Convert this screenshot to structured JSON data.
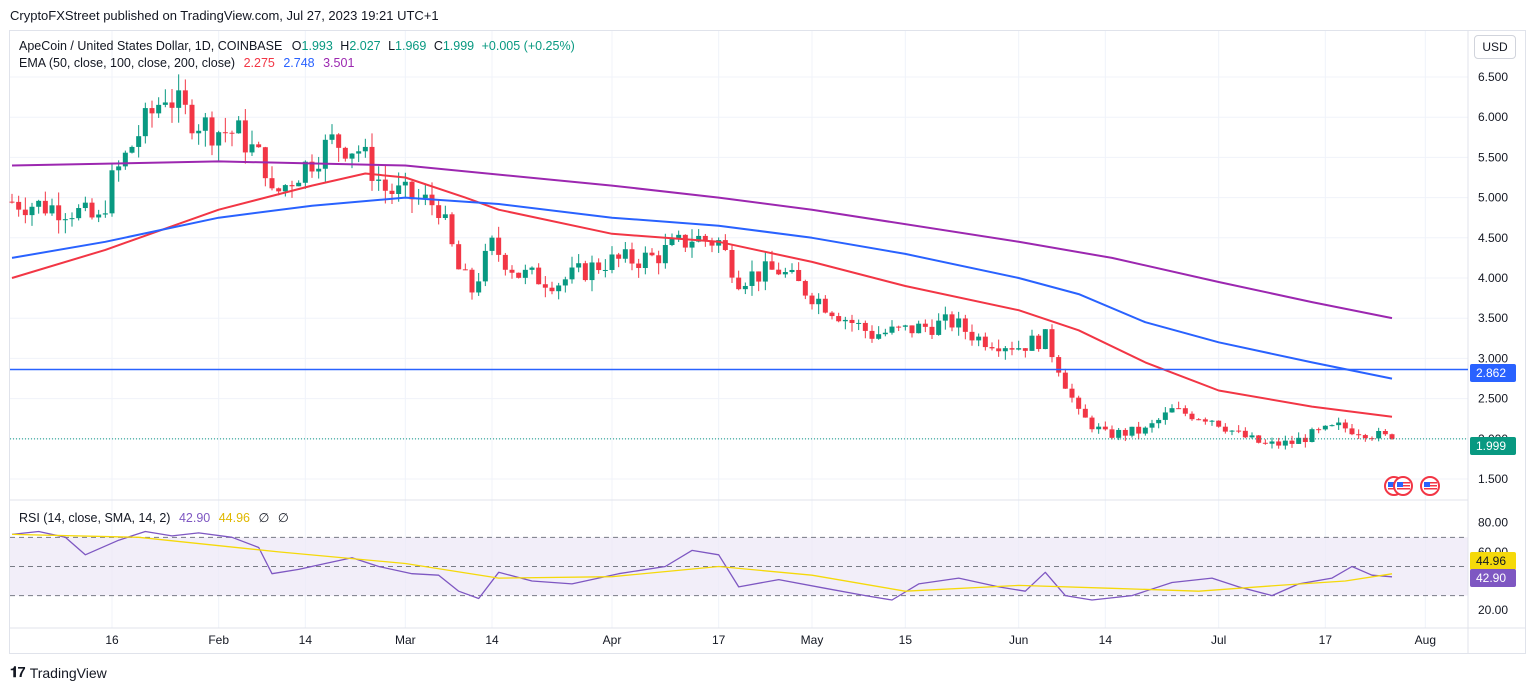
{
  "header": {
    "published": "CryptoFXStreet published on TradingView.com, Jul 27, 2023 19:21 UTC+1"
  },
  "legend": {
    "symbol": "ApeCoin / United States Dollar, 1D, COINBASE",
    "o_label": "O",
    "o_value": "1.993",
    "h_label": "H",
    "h_value": "2.027",
    "l_label": "L",
    "l_value": "1.969",
    "c_label": "C",
    "c_value": "1.999",
    "change": "+0.005 (+0.25%)",
    "ema_label": "EMA (50, close, 100, close, 200, close)",
    "ema50": "2.275",
    "ema100": "2.748",
    "ema200": "3.501",
    "rsi_label": "RSI (14, close, SMA, 14, 2)",
    "rsi_value": "42.90",
    "rsi_sma": "44.96",
    "rsi_extra1": "∅",
    "rsi_extra2": "∅"
  },
  "controls": {
    "currency_button": "USD"
  },
  "price_tags": {
    "hline": "2.862",
    "last": "1.999",
    "rsi_sma": "44.96",
    "rsi": "42.90"
  },
  "brand": {
    "name": "TradingView"
  },
  "colors": {
    "up": "#089981",
    "down": "#f23645",
    "ema50": "#f23645",
    "ema100": "#2962ff",
    "ema200": "#9c27b0",
    "hline": "#2962ff",
    "rsi": "#7e57c2",
    "rsi_sma": "#f5d90a",
    "rsi_band": "#ede7f6",
    "grid": "#f0f3fa"
  },
  "chart_data": [
    {
      "type": "candlestick",
      "title": "ApeCoin / United States Dollar, 1D, COINBASE",
      "ylim": [
        1.4,
        6.6
      ],
      "y_ticks": [
        "6.500",
        "6.000",
        "5.500",
        "5.000",
        "4.500",
        "4.000",
        "3.500",
        "3.000",
        "2.500",
        "2.000",
        "1.500"
      ],
      "x_ticks": [
        "16",
        "Feb",
        "14",
        "Mar",
        "14",
        "Apr",
        "17",
        "May",
        "15",
        "Jun",
        "14",
        "Jul",
        "17",
        "Aug"
      ],
      "horizontal_line": 2.862,
      "last_close": 1.999,
      "close_path": [
        [
          "2023-01-01",
          4.95
        ],
        [
          "2023-01-10",
          4.85
        ],
        [
          "2023-01-14",
          4.7
        ],
        [
          "2023-01-16",
          5.2
        ],
        [
          "2023-01-20",
          5.8
        ],
        [
          "2023-01-24",
          6.3
        ],
        [
          "2023-01-27",
          6.05
        ],
        [
          "2023-01-31",
          5.85
        ],
        [
          "2023-02-04",
          5.8
        ],
        [
          "2023-02-08",
          5.4
        ],
        [
          "2023-02-09",
          5.0
        ],
        [
          "2023-02-14",
          5.4
        ],
        [
          "2023-02-18",
          5.7
        ],
        [
          "2023-02-22",
          5.6
        ],
        [
          "2023-02-26",
          5.1
        ],
        [
          "2023-03-02",
          5.0
        ],
        [
          "2023-03-06",
          4.9
        ],
        [
          "2023-03-09",
          4.1
        ],
        [
          "2023-03-11",
          3.85
        ],
        [
          "2023-03-14",
          4.4
        ],
        [
          "2023-03-18",
          4.05
        ],
        [
          "2023-03-24",
          3.95
        ],
        [
          "2023-03-31",
          4.2
        ],
        [
          "2023-04-07",
          4.25
        ],
        [
          "2023-04-13",
          4.5
        ],
        [
          "2023-04-17",
          4.45
        ],
        [
          "2023-04-20",
          4.0
        ],
        [
          "2023-04-26",
          4.1
        ],
        [
          "2023-04-30",
          3.85
        ],
        [
          "2023-05-06",
          3.5
        ],
        [
          "2023-05-10",
          3.3
        ],
        [
          "2023-05-15",
          3.35
        ],
        [
          "2023-05-22",
          3.45
        ],
        [
          "2023-05-26",
          3.25
        ],
        [
          "2023-06-01",
          3.15
        ],
        [
          "2023-06-05",
          3.25
        ],
        [
          "2023-06-07",
          2.9
        ],
        [
          "2023-06-10",
          2.3
        ],
        [
          "2023-06-14",
          2.05
        ],
        [
          "2023-06-20",
          2.1
        ],
        [
          "2023-06-24",
          2.35
        ],
        [
          "2023-06-30",
          2.25
        ],
        [
          "2023-07-04",
          2.05
        ],
        [
          "2023-07-08",
          1.92
        ],
        [
          "2023-07-12",
          1.95
        ],
        [
          "2023-07-15",
          2.05
        ],
        [
          "2023-07-19",
          2.15
        ],
        [
          "2023-07-22",
          2.1
        ],
        [
          "2023-07-27",
          1.999
        ]
      ],
      "series": [
        {
          "name": "EMA 50",
          "points": [
            [
              "2023-01-01",
              4.0
            ],
            [
              "2023-01-15",
              4.35
            ],
            [
              "2023-02-01",
              4.85
            ],
            [
              "2023-02-15",
              5.15
            ],
            [
              "2023-02-23",
              5.3
            ],
            [
              "2023-03-01",
              5.25
            ],
            [
              "2023-03-10",
              5.0
            ],
            [
              "2023-03-15",
              4.85
            ],
            [
              "2023-04-01",
              4.55
            ],
            [
              "2023-04-17",
              4.45
            ],
            [
              "2023-05-01",
              4.2
            ],
            [
              "2023-05-15",
              3.9
            ],
            [
              "2023-06-01",
              3.6
            ],
            [
              "2023-06-10",
              3.35
            ],
            [
              "2023-06-20",
              2.95
            ],
            [
              "2023-07-01",
              2.6
            ],
            [
              "2023-07-15",
              2.4
            ],
            [
              "2023-07-27",
              2.275
            ]
          ]
        },
        {
          "name": "EMA 100",
          "points": [
            [
              "2023-01-01",
              4.25
            ],
            [
              "2023-01-15",
              4.45
            ],
            [
              "2023-02-01",
              4.75
            ],
            [
              "2023-02-15",
              4.9
            ],
            [
              "2023-03-01",
              5.0
            ],
            [
              "2023-03-15",
              4.92
            ],
            [
              "2023-04-01",
              4.75
            ],
            [
              "2023-04-17",
              4.65
            ],
            [
              "2023-05-01",
              4.5
            ],
            [
              "2023-05-15",
              4.3
            ],
            [
              "2023-06-01",
              4.0
            ],
            [
              "2023-06-10",
              3.8
            ],
            [
              "2023-06-20",
              3.45
            ],
            [
              "2023-07-01",
              3.2
            ],
            [
              "2023-07-15",
              2.95
            ],
            [
              "2023-07-27",
              2.748
            ]
          ]
        },
        {
          "name": "EMA 200",
          "points": [
            [
              "2023-01-01",
              5.4
            ],
            [
              "2023-02-01",
              5.45
            ],
            [
              "2023-03-01",
              5.4
            ],
            [
              "2023-04-01",
              5.15
            ],
            [
              "2023-04-17",
              5.0
            ],
            [
              "2023-05-01",
              4.85
            ],
            [
              "2023-06-01",
              4.45
            ],
            [
              "2023-06-15",
              4.25
            ],
            [
              "2023-07-01",
              3.95
            ],
            [
              "2023-07-15",
              3.7
            ],
            [
              "2023-07-27",
              3.501
            ]
          ]
        }
      ]
    },
    {
      "type": "line",
      "title": "RSI (14, close, SMA, 14, 2)",
      "ylim": [
        16,
        86
      ],
      "y_ticks": [
        "80.00",
        "60.00",
        "20.00"
      ],
      "bands": [
        70,
        50,
        30
      ],
      "series": [
        {
          "name": "RSI",
          "points": [
            [
              "2023-01-01",
              72
            ],
            [
              "2023-01-05",
              74
            ],
            [
              "2023-01-09",
              70
            ],
            [
              "2023-01-12",
              58
            ],
            [
              "2023-01-17",
              68
            ],
            [
              "2023-01-21",
              74
            ],
            [
              "2023-01-25",
              71
            ],
            [
              "2023-01-29",
              73
            ],
            [
              "2023-02-03",
              70
            ],
            [
              "2023-02-07",
              63
            ],
            [
              "2023-02-09",
              45
            ],
            [
              "2023-02-13",
              48
            ],
            [
              "2023-02-17",
              52
            ],
            [
              "2023-02-21",
              56
            ],
            [
              "2023-02-25",
              50
            ],
            [
              "2023-03-02",
              45
            ],
            [
              "2023-03-06",
              44
            ],
            [
              "2023-03-09",
              33
            ],
            [
              "2023-03-12",
              28
            ],
            [
              "2023-03-15",
              46
            ],
            [
              "2023-03-20",
              40
            ],
            [
              "2023-03-26",
              38
            ],
            [
              "2023-04-02",
              45
            ],
            [
              "2023-04-09",
              50
            ],
            [
              "2023-04-13",
              61
            ],
            [
              "2023-04-17",
              58
            ],
            [
              "2023-04-20",
              36
            ],
            [
              "2023-04-26",
              41
            ],
            [
              "2023-05-03",
              35
            ],
            [
              "2023-05-09",
              30
            ],
            [
              "2023-05-13",
              27
            ],
            [
              "2023-05-17",
              38
            ],
            [
              "2023-05-23",
              42
            ],
            [
              "2023-05-29",
              36
            ],
            [
              "2023-06-02",
              33
            ],
            [
              "2023-06-05",
              46
            ],
            [
              "2023-06-08",
              30
            ],
            [
              "2023-06-12",
              27
            ],
            [
              "2023-06-18",
              30
            ],
            [
              "2023-06-24",
              39
            ],
            [
              "2023-06-30",
              42
            ],
            [
              "2023-07-04",
              36
            ],
            [
              "2023-07-09",
              30
            ],
            [
              "2023-07-13",
              38
            ],
            [
              "2023-07-18",
              42
            ],
            [
              "2023-07-21",
              50
            ],
            [
              "2023-07-24",
              44
            ],
            [
              "2023-07-27",
              42.9
            ]
          ]
        },
        {
          "name": "RSI SMA",
          "points": [
            [
              "2023-01-01",
              72
            ],
            [
              "2023-01-20",
              70
            ],
            [
              "2023-02-10",
              60
            ],
            [
              "2023-03-01",
              52
            ],
            [
              "2023-03-15",
              42
            ],
            [
              "2023-04-01",
              43
            ],
            [
              "2023-04-17",
              50
            ],
            [
              "2023-05-01",
              44
            ],
            [
              "2023-05-15",
              33
            ],
            [
              "2023-06-01",
              37
            ],
            [
              "2023-06-15",
              35
            ],
            [
              "2023-06-28",
              33
            ],
            [
              "2023-07-10",
              37
            ],
            [
              "2023-07-20",
              40
            ],
            [
              "2023-07-27",
              44.96
            ]
          ]
        }
      ]
    }
  ]
}
